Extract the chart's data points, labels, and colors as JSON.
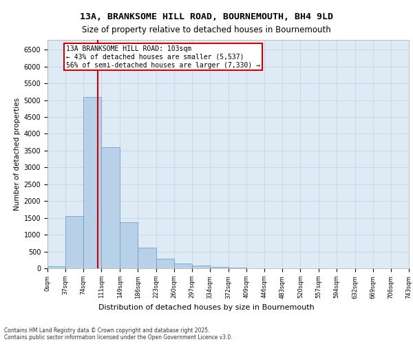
{
  "title": "13A, BRANKSOME HILL ROAD, BOURNEMOUTH, BH4 9LD",
  "subtitle": "Size of property relative to detached houses in Bournemouth",
  "xlabel": "Distribution of detached houses by size in Bournemouth",
  "ylabel": "Number of detached properties",
  "bar_color": "#b8d0e8",
  "bar_edge_color": "#6699bb",
  "grid_color": "#c8d8e8",
  "background_color": "#deeaf4",
  "property_line_x": 103,
  "annotation_text": "13A BRANKSOME HILL ROAD: 103sqm\n← 43% of detached houses are smaller (5,537)\n56% of semi-detached houses are larger (7,330) →",
  "annotation_box_color": "#ffffff",
  "annotation_box_edge_color": "#cc0000",
  "footer_text": "Contains HM Land Registry data © Crown copyright and database right 2025.\nContains public sector information licensed under the Open Government Licence v3.0.",
  "bin_edges": [
    0,
    37,
    74,
    111,
    149,
    186,
    223,
    260,
    297,
    334,
    372,
    409,
    446,
    483,
    520,
    557,
    594,
    632,
    669,
    706,
    743
  ],
  "bin_labels": [
    "0sqm",
    "37sqm",
    "74sqm",
    "111sqm",
    "149sqm",
    "186sqm",
    "223sqm",
    "260sqm",
    "297sqm",
    "334sqm",
    "372sqm",
    "409sqm",
    "446sqm",
    "483sqm",
    "520sqm",
    "557sqm",
    "594sqm",
    "632sqm",
    "669sqm",
    "706sqm",
    "743sqm"
  ],
  "bar_heights": [
    70,
    1550,
    5100,
    3600,
    1380,
    620,
    280,
    145,
    90,
    48,
    22,
    10,
    5,
    3,
    2,
    1,
    0,
    0,
    0,
    0
  ],
  "ylim": [
    0,
    6800
  ],
  "yticks": [
    0,
    500,
    1000,
    1500,
    2000,
    2500,
    3000,
    3500,
    4000,
    4500,
    5000,
    5500,
    6000,
    6500
  ]
}
